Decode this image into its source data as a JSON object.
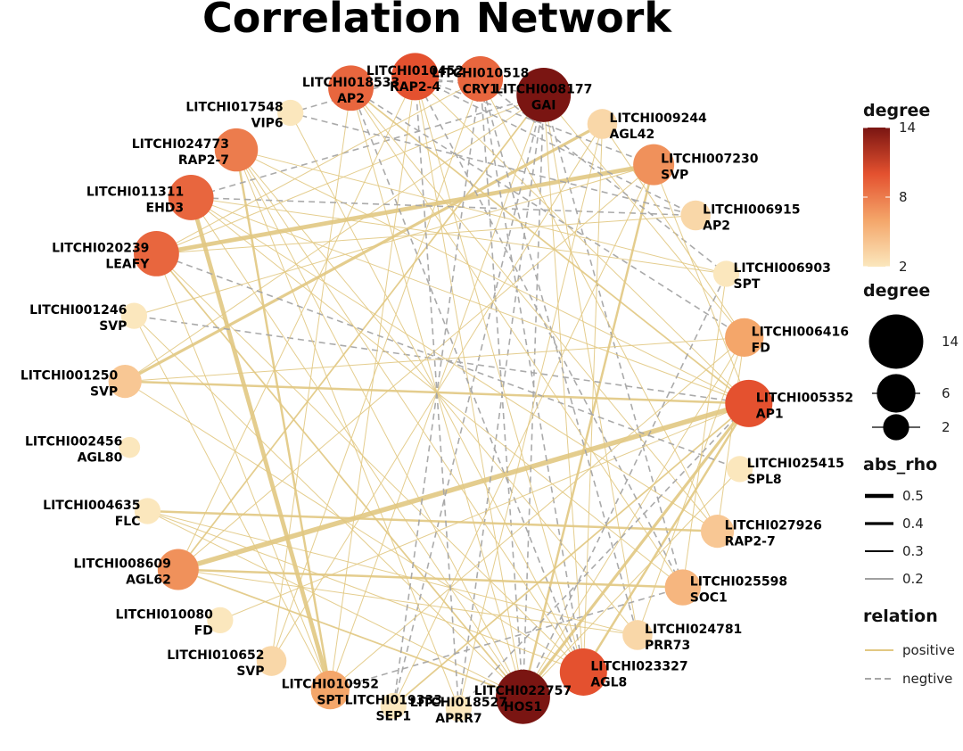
{
  "chart_data": {
    "type": "network",
    "title": "Correlation Network",
    "nodes": [
      {
        "id": "LITCHI008177",
        "gene": "GAI",
        "degree": 14
      },
      {
        "id": "LITCHI009244",
        "gene": "AGL42",
        "degree": 3
      },
      {
        "id": "LITCHI007230",
        "gene": "SVP",
        "degree": 7
      },
      {
        "id": "LITCHI006915",
        "gene": "AP2",
        "degree": 3
      },
      {
        "id": "LITCHI006903",
        "gene": "SPT",
        "degree": 2
      },
      {
        "id": "LITCHI006416",
        "gene": "FD",
        "degree": 6
      },
      {
        "id": "LITCHI005352",
        "gene": "AP1",
        "degree": 10
      },
      {
        "id": "LITCHI025415",
        "gene": "SPL8",
        "degree": 2
      },
      {
        "id": "LITCHI027926",
        "gene": "RAP2-7",
        "degree": 4
      },
      {
        "id": "LITCHI025598",
        "gene": "SOC1",
        "degree": 5
      },
      {
        "id": "LITCHI024781",
        "gene": "PRR73",
        "degree": 3
      },
      {
        "id": "LITCHI023327",
        "gene": "AGL8",
        "degree": 10
      },
      {
        "id": "LITCHI022757",
        "gene": "HOS1",
        "degree": 14
      },
      {
        "id": "LITCHI018527",
        "gene": "APRR7",
        "degree": 2
      },
      {
        "id": "LITCHI019333",
        "gene": "SEP1",
        "degree": 2
      },
      {
        "id": "LITCHI010952",
        "gene": "SPT",
        "degree": 6
      },
      {
        "id": "LITCHI010652",
        "gene": "SVP",
        "degree": 3
      },
      {
        "id": "LITCHI010080",
        "gene": "FD",
        "degree": 2
      },
      {
        "id": "LITCHI008609",
        "gene": "AGL62",
        "degree": 7
      },
      {
        "id": "LITCHI004635",
        "gene": "FLC",
        "degree": 2
      },
      {
        "id": "LITCHI002456",
        "gene": "AGL80",
        "degree": 1
      },
      {
        "id": "LITCHI001250",
        "gene": "SVP",
        "degree": 4
      },
      {
        "id": "LITCHI001246",
        "gene": "SVP",
        "degree": 2
      },
      {
        "id": "LITCHI020239",
        "gene": "LEAFY",
        "degree": 9
      },
      {
        "id": "LITCHI011311",
        "gene": "EHD3",
        "degree": 9
      },
      {
        "id": "LITCHI024773",
        "gene": "RAP2-7",
        "degree": 8
      },
      {
        "id": "LITCHI017548",
        "gene": "VIP6",
        "degree": 2
      },
      {
        "id": "LITCHI018533",
        "gene": "AP2",
        "degree": 9
      },
      {
        "id": "LITCHI010452",
        "gene": "RAP2-4",
        "degree": 10
      },
      {
        "id": "LITCHI010518",
        "gene": "CRY1",
        "degree": 9
      }
    ],
    "edges": [
      {
        "from": "LITCHI020239",
        "to": "LITCHI007230",
        "abs_rho": 0.45,
        "relation": "positive"
      },
      {
        "from": "LITCHI008609",
        "to": "LITCHI005352",
        "abs_rho": 0.5,
        "relation": "positive"
      },
      {
        "from": "LITCHI001250",
        "to": "LITCHI005352",
        "abs_rho": 0.3,
        "relation": "positive"
      },
      {
        "from": "LITCHI001250",
        "to": "LITCHI009244",
        "abs_rho": 0.35,
        "relation": "positive"
      },
      {
        "from": "LITCHI011311",
        "to": "LITCHI010952",
        "abs_rho": 0.45,
        "relation": "positive"
      },
      {
        "from": "LITCHI024773",
        "to": "LITCHI010952",
        "abs_rho": 0.3,
        "relation": "positive"
      },
      {
        "from": "LITCHI022757",
        "to": "LITCHI005352",
        "abs_rho": 0.35,
        "relation": "positive"
      },
      {
        "from": "LITCHI022757",
        "to": "LITCHI007230",
        "abs_rho": 0.3,
        "relation": "positive"
      },
      {
        "from": "LITCHI022757",
        "to": "LITCHI010452",
        "abs_rho": 0.2,
        "relation": "positive"
      },
      {
        "from": "LITCHI022757",
        "to": "LITCHI018533",
        "abs_rho": 0.2,
        "relation": "positive"
      },
      {
        "from": "LITCHI022757",
        "to": "LITCHI008609",
        "abs_rho": 0.25,
        "relation": "positive"
      },
      {
        "from": "LITCHI022757",
        "to": "LITCHI011311",
        "abs_rho": 0.2,
        "relation": "positive"
      },
      {
        "from": "LITCHI022757",
        "to": "LITCHI020239",
        "abs_rho": 0.25,
        "relation": "positive"
      },
      {
        "from": "LITCHI022757",
        "to": "LITCHI006416",
        "abs_rho": 0.2,
        "relation": "positive"
      },
      {
        "from": "LITCHI022757",
        "to": "LITCHI001246",
        "abs_rho": 0.2,
        "relation": "positive"
      },
      {
        "from": "LITCHI022757",
        "to": "LITCHI004635",
        "abs_rho": 0.2,
        "relation": "positive"
      },
      {
        "from": "LITCHI022757",
        "to": "LITCHI024773",
        "abs_rho": 0.2,
        "relation": "positive"
      },
      {
        "from": "LITCHI022757",
        "to": "LITCHI008177",
        "abs_rho": 0.2,
        "relation": "negative"
      },
      {
        "from": "LITCHI022757",
        "to": "LITCHI010518",
        "abs_rho": 0.2,
        "relation": "negative"
      },
      {
        "from": "LITCHI008177",
        "to": "LITCHI008609",
        "abs_rho": 0.25,
        "relation": "positive"
      },
      {
        "from": "LITCHI008177",
        "to": "LITCHI020239",
        "abs_rho": 0.2,
        "relation": "positive"
      },
      {
        "from": "LITCHI008177",
        "to": "LITCHI010952",
        "abs_rho": 0.2,
        "relation": "positive"
      },
      {
        "from": "LITCHI008177",
        "to": "LITCHI001250",
        "abs_rho": 0.2,
        "relation": "positive"
      },
      {
        "from": "LITCHI008177",
        "to": "LITCHI023327",
        "abs_rho": 0.2,
        "relation": "positive"
      },
      {
        "from": "LITCHI008177",
        "to": "LITCHI006416",
        "abs_rho": 0.2,
        "relation": "positive"
      },
      {
        "from": "LITCHI008177",
        "to": "LITCHI024781",
        "abs_rho": 0.2,
        "relation": "positive"
      },
      {
        "from": "LITCHI008177",
        "to": "LITCHI011311",
        "abs_rho": 0.2,
        "relation": "negative"
      },
      {
        "from": "LITCHI008177",
        "to": "LITCHI019333",
        "abs_rho": 0.2,
        "relation": "negative"
      },
      {
        "from": "LITCHI008177",
        "to": "LITCHI018527",
        "abs_rho": 0.2,
        "relation": "negative"
      },
      {
        "from": "LITCHI008177",
        "to": "LITCHI025598",
        "abs_rho": 0.2,
        "relation": "negative"
      },
      {
        "from": "LITCHI023327",
        "to": "LITCHI005352",
        "abs_rho": 0.3,
        "relation": "positive"
      },
      {
        "from": "LITCHI023327",
        "to": "LITCHI024773",
        "abs_rho": 0.2,
        "relation": "positive"
      },
      {
        "from": "LITCHI023327",
        "to": "LITCHI010452",
        "abs_rho": 0.2,
        "relation": "positive"
      },
      {
        "from": "LITCHI023327",
        "to": "LITCHI001250",
        "abs_rho": 0.2,
        "relation": "positive"
      },
      {
        "from": "LITCHI023327",
        "to": "LITCHI004635",
        "abs_rho": 0.2,
        "relation": "positive"
      },
      {
        "from": "LITCHI023327",
        "to": "LITCHI009244",
        "abs_rho": 0.2,
        "relation": "positive"
      },
      {
        "from": "LITCHI023327",
        "to": "LITCHI010518",
        "abs_rho": 0.2,
        "relation": "negative"
      },
      {
        "from": "LITCHI023327",
        "to": "LITCHI018533",
        "abs_rho": 0.2,
        "relation": "negative"
      },
      {
        "from": "LITCHI005352",
        "to": "LITCHI018533",
        "abs_rho": 0.25,
        "relation": "positive"
      },
      {
        "from": "LITCHI005352",
        "to": "LITCHI011311",
        "abs_rho": 0.2,
        "relation": "positive"
      },
      {
        "from": "LITCHI005352",
        "to": "LITCHI024773",
        "abs_rho": 0.2,
        "relation": "positive"
      },
      {
        "from": "LITCHI005352",
        "to": "LITCHI010080",
        "abs_rho": 0.2,
        "relation": "positive"
      },
      {
        "from": "LITCHI005352",
        "to": "LITCHI019333",
        "abs_rho": 0.25,
        "relation": "positive"
      },
      {
        "from": "LITCHI005352",
        "to": "LITCHI010452",
        "abs_rho": 0.2,
        "relation": "positive"
      },
      {
        "from": "LITCHI005352",
        "to": "LITCHI001246",
        "abs_rho": 0.2,
        "relation": "negative"
      },
      {
        "from": "LITCHI010452",
        "to": "LITCHI008609",
        "abs_rho": 0.2,
        "relation": "positive"
      },
      {
        "from": "LITCHI010452",
        "to": "LITCHI010952",
        "abs_rho": 0.2,
        "relation": "positive"
      },
      {
        "from": "LITCHI010452",
        "to": "LITCHI007230",
        "abs_rho": 0.2,
        "relation": "negative"
      },
      {
        "from": "LITCHI010452",
        "to": "LITCHI006915",
        "abs_rho": 0.2,
        "relation": "negative"
      },
      {
        "from": "LITCHI010452",
        "to": "LITCHI025598",
        "abs_rho": 0.2,
        "relation": "negative"
      },
      {
        "from": "LITCHI010518",
        "to": "LITCHI020239",
        "abs_rho": 0.2,
        "relation": "positive"
      },
      {
        "from": "LITCHI010518",
        "to": "LITCHI010652",
        "abs_rho": 0.2,
        "relation": "positive"
      },
      {
        "from": "LITCHI010518",
        "to": "LITCHI027926",
        "abs_rho": 0.2,
        "relation": "positive"
      },
      {
        "from": "LITCHI010518",
        "to": "LITCHI006903",
        "abs_rho": 0.2,
        "relation": "negative"
      },
      {
        "from": "LITCHI010518",
        "to": "LITCHI024781",
        "abs_rho": 0.2,
        "relation": "negative"
      },
      {
        "from": "LITCHI018533",
        "to": "LITCHI027926",
        "abs_rho": 0.2,
        "relation": "positive"
      },
      {
        "from": "LITCHI018533",
        "to": "LITCHI010652",
        "abs_rho": 0.2,
        "relation": "positive"
      },
      {
        "from": "LITCHI018533",
        "to": "LITCHI025598",
        "abs_rho": 0.2,
        "relation": "positive"
      },
      {
        "from": "LITCHI018533",
        "to": "LITCHI006416",
        "abs_rho": 0.2,
        "relation": "negative"
      },
      {
        "from": "LITCHI011311",
        "to": "LITCHI006915",
        "abs_rho": 0.2,
        "relation": "negative"
      },
      {
        "from": "LITCHI011311",
        "to": "LITCHI025598",
        "abs_rho": 0.2,
        "relation": "positive"
      },
      {
        "from": "LITCHI011311",
        "to": "LITCHI027926",
        "abs_rho": 0.2,
        "relation": "positive"
      },
      {
        "from": "LITCHI024773",
        "to": "LITCHI006903",
        "abs_rho": 0.2,
        "relation": "positive"
      },
      {
        "from": "LITCHI024773",
        "to": "LITCHI024781",
        "abs_rho": 0.2,
        "relation": "positive"
      },
      {
        "from": "LITCHI024773",
        "to": "LITCHI018527",
        "abs_rho": 0.2,
        "relation": "positive"
      },
      {
        "from": "LITCHI020239",
        "to": "LITCHI023327",
        "abs_rho": 0.2,
        "relation": "positive"
      },
      {
        "from": "LITCHI020239",
        "to": "LITCHI006915",
        "abs_rho": 0.2,
        "relation": "positive"
      },
      {
        "from": "LITCHI020239",
        "to": "LITCHI025415",
        "abs_rho": 0.2,
        "relation": "negative"
      },
      {
        "from": "LITCHI020239",
        "to": "LITCHI010952",
        "abs_rho": 0.2,
        "relation": "positive"
      },
      {
        "from": "LITCHI008609",
        "to": "LITCHI025598",
        "abs_rho": 0.3,
        "relation": "positive"
      },
      {
        "from": "LITCHI008609",
        "to": "LITCHI007230",
        "abs_rho": 0.2,
        "relation": "positive"
      },
      {
        "from": "LITCHI008609",
        "to": "LITCHI024781",
        "abs_rho": 0.2,
        "relation": "positive"
      },
      {
        "from": "LITCHI004635",
        "to": "LITCHI027926",
        "abs_rho": 0.3,
        "relation": "positive"
      },
      {
        "from": "LITCHI004635",
        "to": "LITCHI024781",
        "abs_rho": 0.2,
        "relation": "positive"
      },
      {
        "from": "LITCHI001246",
        "to": "LITCHI007230",
        "abs_rho": 0.2,
        "relation": "positive"
      },
      {
        "from": "LITCHI001246",
        "to": "LITCHI010952",
        "abs_rho": 0.2,
        "relation": "positive"
      },
      {
        "from": "LITCHI001250",
        "to": "LITCHI006416",
        "abs_rho": 0.2,
        "relation": "positive"
      },
      {
        "from": "LITCHI010952",
        "to": "LITCHI006416",
        "abs_rho": 0.2,
        "relation": "positive"
      },
      {
        "from": "LITCHI010952",
        "to": "LITCHI025598",
        "abs_rho": 0.2,
        "relation": "negative"
      },
      {
        "from": "LITCHI010652",
        "to": "LITCHI009244",
        "abs_rho": 0.2,
        "relation": "positive"
      },
      {
        "from": "LITCHI019333",
        "to": "LITCHI007230",
        "abs_rho": 0.2,
        "relation": "positive"
      },
      {
        "from": "LITCHI019333",
        "to": "LITCHI010518",
        "abs_rho": 0.2,
        "relation": "negative"
      },
      {
        "from": "LITCHI018527",
        "to": "LITCHI010452",
        "abs_rho": 0.2,
        "relation": "negative"
      },
      {
        "from": "LITCHI018527",
        "to": "LITCHI009244",
        "abs_rho": 0.2,
        "relation": "positive"
      },
      {
        "from": "LITCHI017548",
        "to": "LITCHI023327",
        "abs_rho": 0.2,
        "relation": "positive"
      },
      {
        "from": "LITCHI017548",
        "to": "LITCHI006915",
        "abs_rho": 0.2,
        "relation": "negative"
      },
      {
        "from": "LITCHI024781",
        "to": "LITCHI006416",
        "abs_rho": 0.2,
        "relation": "positive"
      },
      {
        "from": "LITCHI025598",
        "to": "LITCHI006903",
        "abs_rho": 0.2,
        "relation": "positive"
      },
      {
        "from": "LITCHI027926",
        "to": "LITCHI006416",
        "abs_rho": 0.2,
        "relation": "positive"
      },
      {
        "from": "LITCHI025415",
        "to": "LITCHI022757",
        "abs_rho": 0.2,
        "relation": "positive"
      },
      {
        "from": "LITCHI009244",
        "to": "LITCHI006416",
        "abs_rho": 0.2,
        "relation": "positive"
      },
      {
        "from": "LITCHI006903",
        "to": "LITCHI011311",
        "abs_rho": 0.2,
        "relation": "positive"
      },
      {
        "from": "LITCHI007230",
        "to": "LITCHI005352",
        "abs_rho": 0.2,
        "relation": "positive"
      },
      {
        "from": "LITCHI018533",
        "to": "LITCHI010518",
        "abs_rho": 0.2,
        "relation": "negative"
      },
      {
        "from": "LITCHI010452",
        "to": "LITCHI008177",
        "abs_rho": 0.2,
        "relation": "negative"
      },
      {
        "from": "LITCHI017548",
        "to": "LITCHI010452",
        "abs_rho": 0.2,
        "relation": "negative"
      },
      {
        "from": "LITCHI018527",
        "to": "LITCHI005352",
        "abs_rho": 0.2,
        "relation": "negative"
      },
      {
        "from": "LITCHI022757",
        "to": "LITCHI006903",
        "abs_rho": 0.2,
        "relation": "negative"
      }
    ],
    "legend": {
      "color": {
        "title": "degree",
        "ticks": [
          14,
          8,
          2
        ],
        "colors": [
          "#fbe7bd",
          "#f4a66a",
          "#e4512f",
          "#7a1512"
        ],
        "range": [
          2,
          14
        ]
      },
      "size": {
        "title": "degree",
        "items": [
          14,
          6,
          2
        ]
      },
      "width": {
        "title": "abs_rho",
        "items": [
          0.5,
          0.4,
          0.3,
          0.2
        ]
      },
      "relation": {
        "title": "relation",
        "items": [
          {
            "label": "positive",
            "color": "#e2c882",
            "dashed": false
          },
          {
            "label": "negtive",
            "color": "#a6a6a6",
            "dashed": true
          }
        ]
      }
    },
    "layout": "circle",
    "legend_position": "right"
  }
}
